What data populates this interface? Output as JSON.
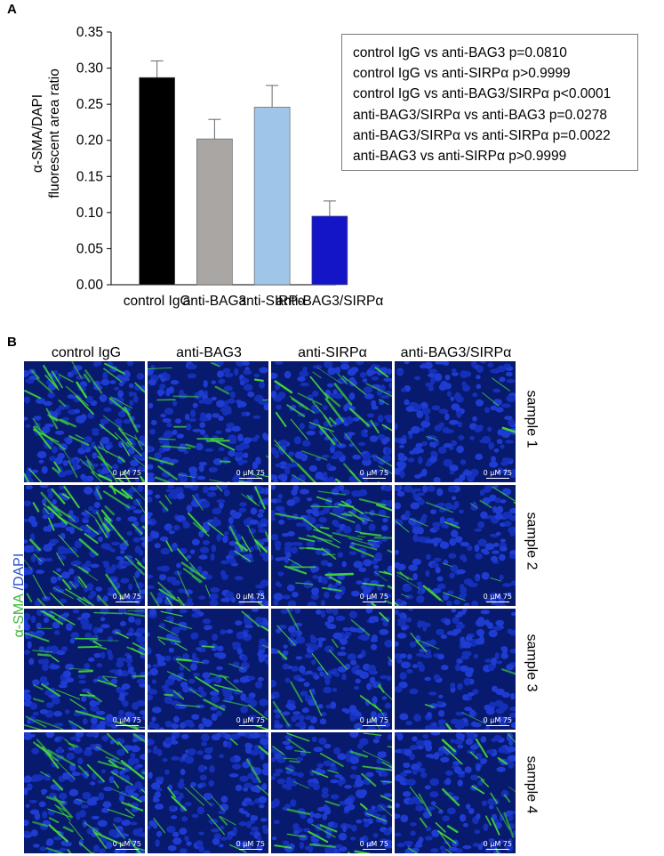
{
  "panel_a": {
    "letter": "A"
  },
  "panel_b": {
    "letter": "B"
  },
  "chart_data": {
    "type": "bar",
    "categories": [
      "control IgG",
      "anti-BAG3",
      "anti-SIRPα",
      "anti-BAG3/SIRPα"
    ],
    "values": [
      0.287,
      0.202,
      0.246,
      0.095
    ],
    "errors": [
      0.023,
      0.027,
      0.03,
      0.021
    ],
    "colors": [
      "#000000",
      "#a9a6a4",
      "#9fc5e8",
      "#1515c8"
    ],
    "ylabel_line1": "α-SMA/DAPI",
    "ylabel_line2": "fluorescent area ratio",
    "ylim": [
      0,
      0.35
    ],
    "yticks": [
      "0.00",
      "0.05",
      "0.10",
      "0.15",
      "0.20",
      "0.25",
      "0.30",
      "0.35"
    ],
    "ytick_values": [
      0,
      0.05,
      0.1,
      0.15,
      0.2,
      0.25,
      0.3,
      0.35
    ],
    "grid": false,
    "annotations": [
      "control IgG vs anti-BAG3 p=0.0810",
      "control IgG vs anti-SIRPα p>0.9999",
      "control IgG vs anti-BAG3/SIRPα p<0.0001",
      "anti-BAG3/SIRPα vs anti-BAG3 p=0.0278",
      "anti-BAG3/SIRPα vs anti-SIRPα p=0.0022",
      "anti-BAG3 vs anti-SIRPα p>0.9999"
    ]
  },
  "microscopy": {
    "columns": [
      "control IgG",
      "anti-BAG3",
      "anti-SIRPα",
      "anti-BAG3/SIRPα"
    ],
    "rows": [
      "sample 1",
      "sample 2",
      "sample 3",
      "sample 4"
    ],
    "stain_green": "α-SMA",
    "stain_separator": " /",
    "stain_blue": "DAPI",
    "scalebar_text": "0   μM  75",
    "green_color": "#3fd83a",
    "blue_color": "#1e3cd2",
    "green_density": [
      [
        0.9,
        0.35,
        0.55,
        0.05
      ],
      [
        0.85,
        0.45,
        0.7,
        0.25
      ],
      [
        0.6,
        0.4,
        0.25,
        0.1
      ],
      [
        0.75,
        0.2,
        0.5,
        0.4
      ]
    ]
  }
}
